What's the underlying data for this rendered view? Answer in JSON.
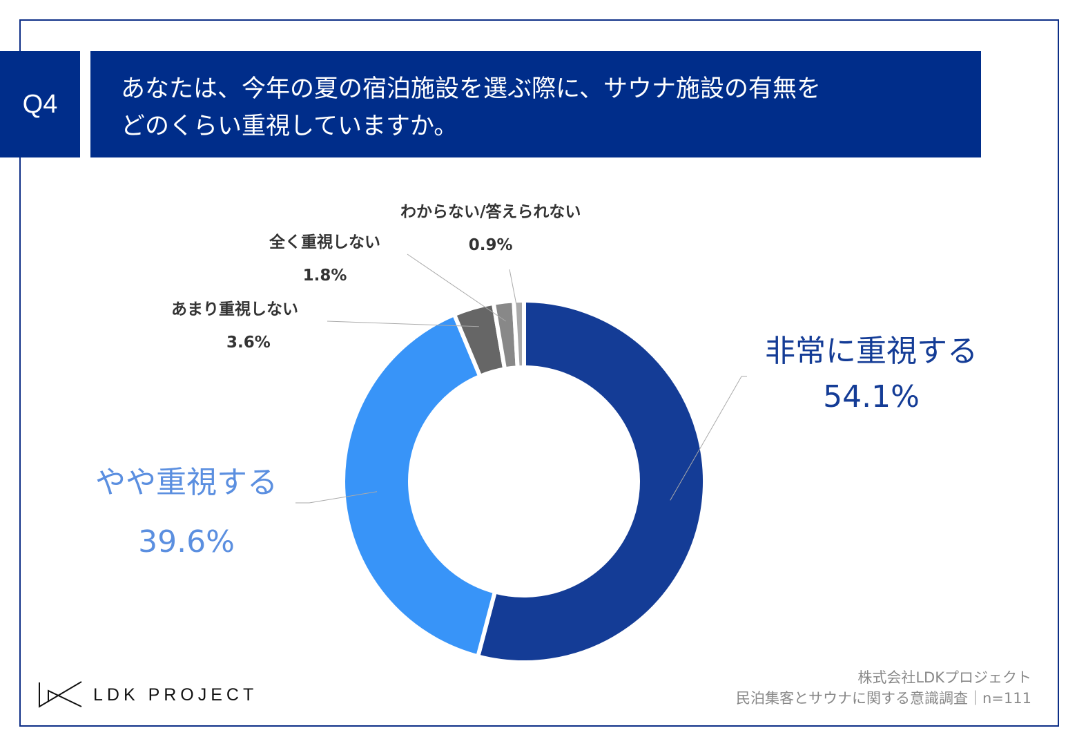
{
  "header": {
    "q_label": "Q4",
    "title": "あなたは、今年の夏の宿泊施設を選ぶ際に、サウナ施設の有無を\nどのくらい重視していますか。"
  },
  "chart_data": {
    "type": "pie",
    "subtype": "donut",
    "title": "あなたは、今年の夏の宿泊施設を選ぶ際に、サウナ施設の有無をどのくらい重視していますか。",
    "categories": [
      "非常に重視する",
      "やや重視する",
      "あまり重視しない",
      "全く重視しない",
      "わからない/答えられない"
    ],
    "values": [
      54.1,
      39.6,
      3.6,
      1.8,
      0.9
    ],
    "labels": [
      "54.1%",
      "39.6%",
      "3.6%",
      "1.8%",
      "0.9%"
    ],
    "colors": [
      "#143c96",
      "#3894f8",
      "#666666",
      "#888888",
      "#aaaaaa"
    ],
    "unit": "%"
  },
  "footer": {
    "company": "株式会社LDKプロジェクト",
    "survey": "民泊集客とサウナに関する意識調査｜n=111",
    "logo_text": "LDK PROJECT"
  }
}
